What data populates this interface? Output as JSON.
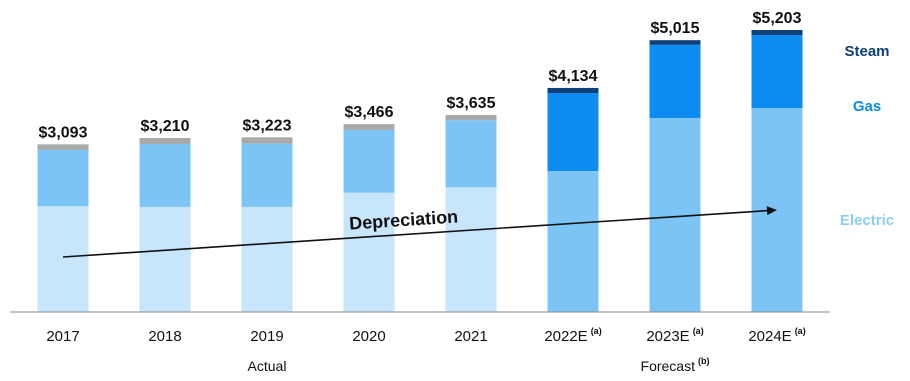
{
  "chart_data": {
    "type": "bar",
    "stacked": true,
    "categories": [
      "2017",
      "2018",
      "2019",
      "2020",
      "2021",
      "2022E",
      "2023E",
      "2024E"
    ],
    "category_superscripts": [
      "",
      "",
      "",
      "",
      "",
      "(a)",
      "(a)",
      "(a)"
    ],
    "totals_labels": [
      "$3,093",
      "$3,210",
      "$3,223",
      "$3,466",
      "$3,635",
      "$4,134",
      "$5,015",
      "$5,203"
    ],
    "totals": [
      3093,
      3210,
      3223,
      3466,
      3635,
      4134,
      5015,
      5203
    ],
    "series": [
      {
        "name": "Electric",
        "values": [
          1950,
          1940,
          1940,
          2200,
          2300,
          2600,
          3580,
          3760
        ]
      },
      {
        "name": "Gas",
        "values": [
          1040,
          1160,
          1170,
          1160,
          1240,
          1440,
          1350,
          1350
        ]
      },
      {
        "name": "Steam",
        "values": [
          103,
          110,
          113,
          106,
          95,
          94,
          85,
          93
        ]
      }
    ],
    "series_colors": {
      "actual": {
        "Electric": "#c8e6fb",
        "Gas": "#7dc4f6",
        "Steam": "#a9a9a9"
      },
      "forecast": {
        "Electric": "#7dc4f6",
        "Gas": "#0c8cf0",
        "Steam": "#0d3f78"
      }
    },
    "legend_colors": {
      "Steam": "#0d3f78",
      "Gas": "#0c8cf0",
      "Electric": "#8ccdf8"
    },
    "legend_position": "right",
    "groups": [
      {
        "label": "Actual",
        "superscript": "",
        "categories": [
          "2017",
          "2018",
          "2019",
          "2020",
          "2021"
        ]
      },
      {
        "label": "Forecast",
        "superscript": "(b)",
        "categories": [
          "2022E",
          "2023E",
          "2024E"
        ]
      }
    ],
    "annotation": {
      "text": "Depreciation",
      "type": "arrow",
      "from": "2017",
      "to": "2024E"
    },
    "ylim": [
      0,
      5500
    ],
    "grid": false,
    "title": "",
    "xlabel": "",
    "ylabel": ""
  }
}
